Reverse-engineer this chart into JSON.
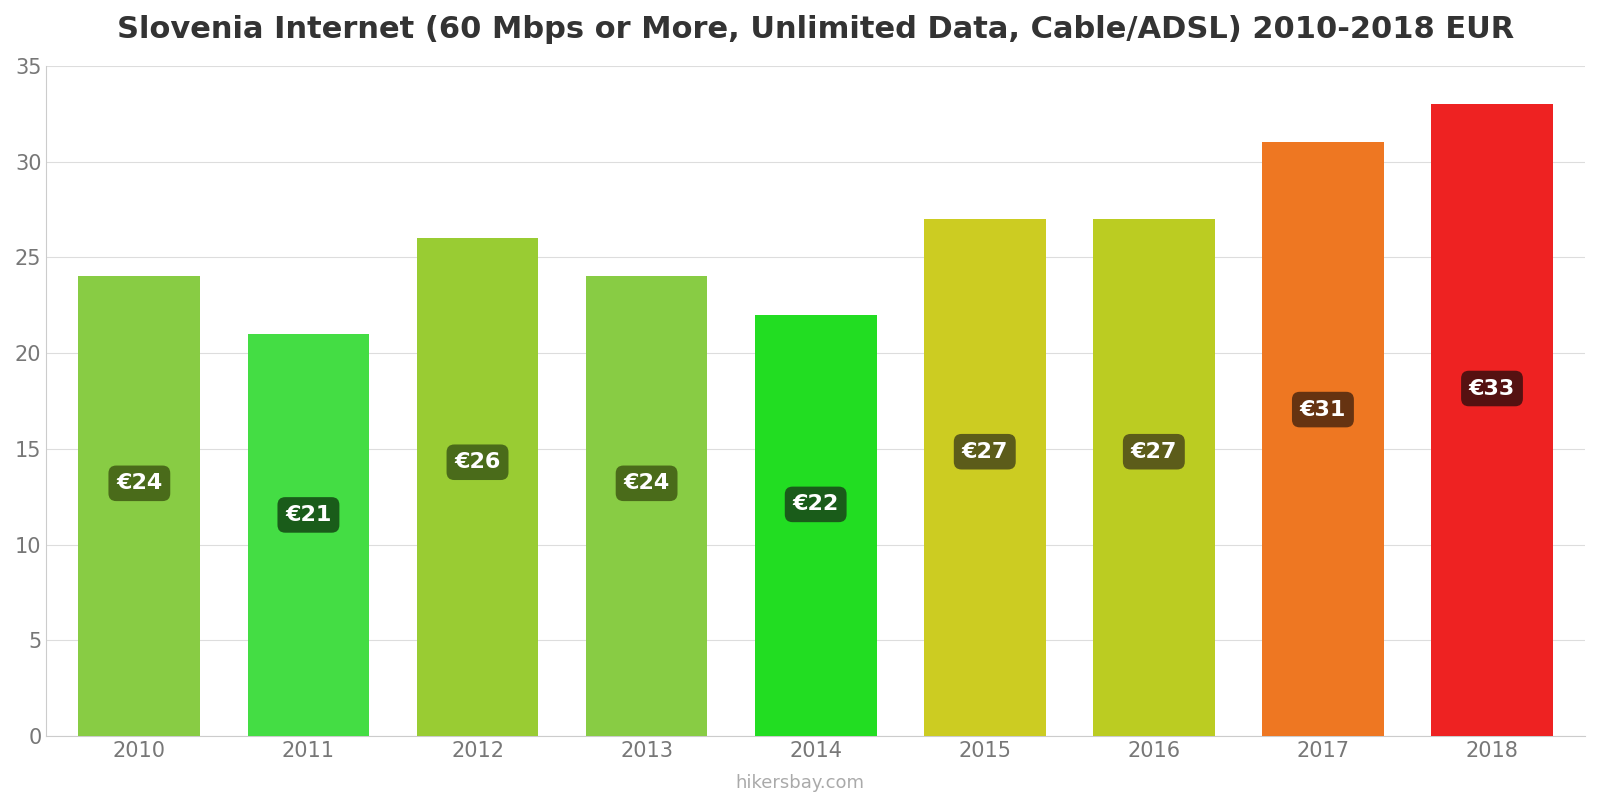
{
  "title": "Slovenia Internet (60 Mbps or More, Unlimited Data, Cable/ADSL) 2010-2018 EUR",
  "years": [
    2010,
    2011,
    2012,
    2013,
    2014,
    2015,
    2016,
    2017,
    2018
  ],
  "values": [
    24,
    21,
    26,
    24,
    22,
    27,
    27,
    31,
    33
  ],
  "bar_colors": [
    "#88CC44",
    "#44DD44",
    "#99CC33",
    "#88CC44",
    "#22DD22",
    "#CCCC22",
    "#BBCC22",
    "#EE7722",
    "#EE2222"
  ],
  "label_bg_colors": [
    "#4A6B1A",
    "#1A5C1A",
    "#4A6B1A",
    "#4A6B1A",
    "#1A5C1A",
    "#5C5C1A",
    "#5C5C1A",
    "#663311",
    "#551111"
  ],
  "ylim": [
    0,
    35
  ],
  "yticks": [
    0,
    5,
    10,
    15,
    20,
    25,
    30,
    35
  ],
  "label_prefix": "€",
  "watermark": "hikersbay.com",
  "background_color": "#ffffff",
  "label_font_size": 16,
  "title_font_size": 22,
  "tick_font_size": 15,
  "bar_width": 0.72
}
